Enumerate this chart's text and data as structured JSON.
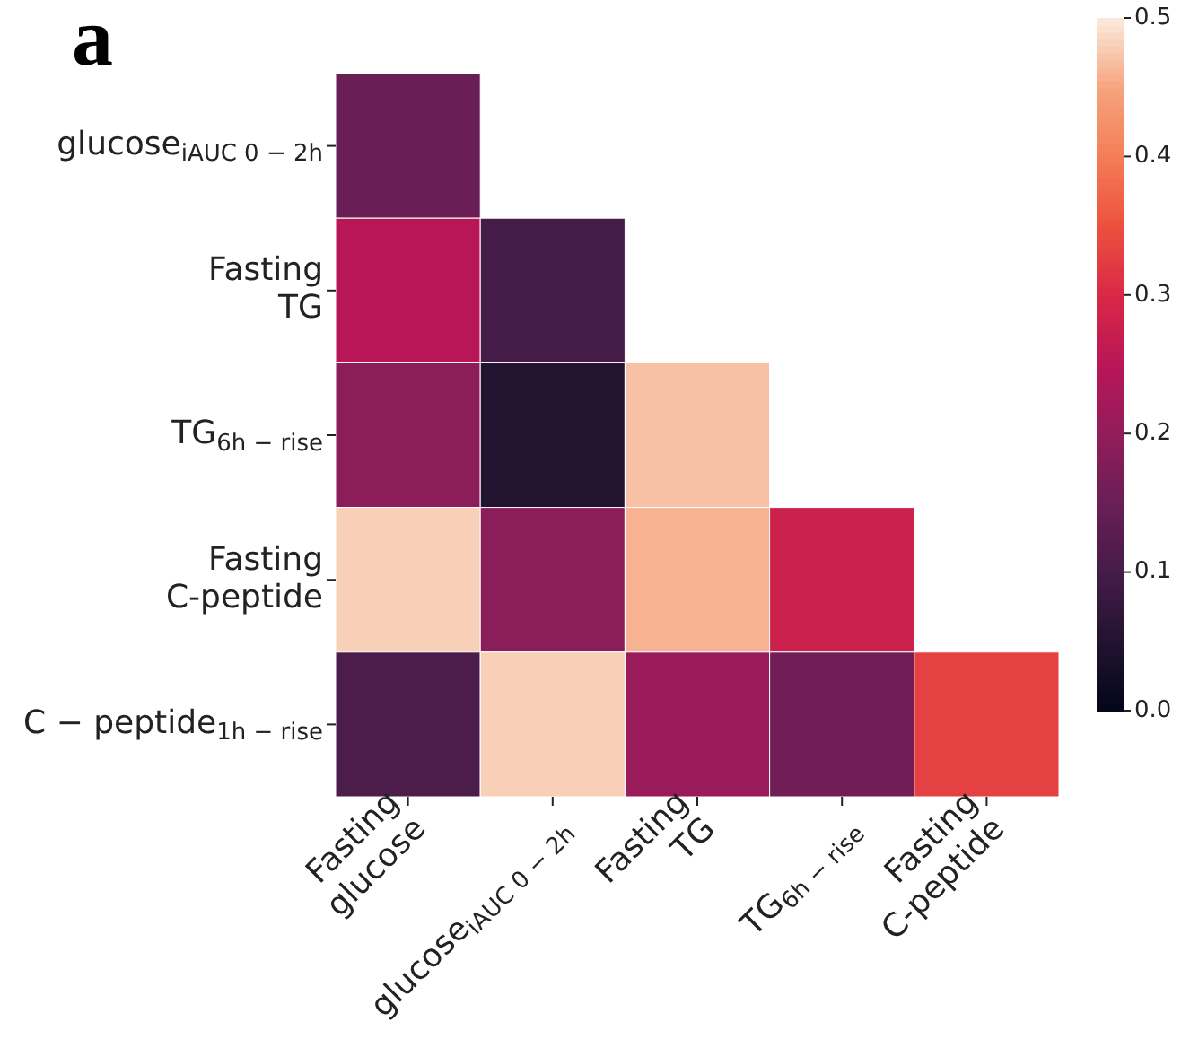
{
  "chart_data": {
    "type": "heatmap",
    "title": "a",
    "categories": [
      "Fasting\nglucose",
      "glucose$_{iAUC 0 − 2h}$",
      "Fasting\nTG",
      "TG$_{6h − rise}$",
      "Fasting\nC-peptide"
    ],
    "y_categories": [
      "glucose$_{iAUC 0 − 2h}$",
      "Fasting\nTG",
      "TG$_{6h − rise}$",
      "Fasting\nC-peptide",
      "C − peptide$_{1h − rise}$"
    ],
    "cells": [
      [
        0.15,
        null,
        null,
        null,
        null
      ],
      [
        0.25,
        0.1,
        null,
        null,
        null
      ],
      [
        0.19,
        0.05,
        0.47,
        null,
        null
      ],
      [
        0.48,
        0.19,
        0.46,
        0.28,
        null
      ],
      [
        0.11,
        0.48,
        0.21,
        0.16,
        0.33
      ]
    ],
    "clim": [
      0,
      0.5
    ],
    "cticks": [
      {
        "value": 0,
        "label": "0.0"
      },
      0.1,
      0.2,
      0.3,
      0.4,
      0.5
    ]
  }
}
